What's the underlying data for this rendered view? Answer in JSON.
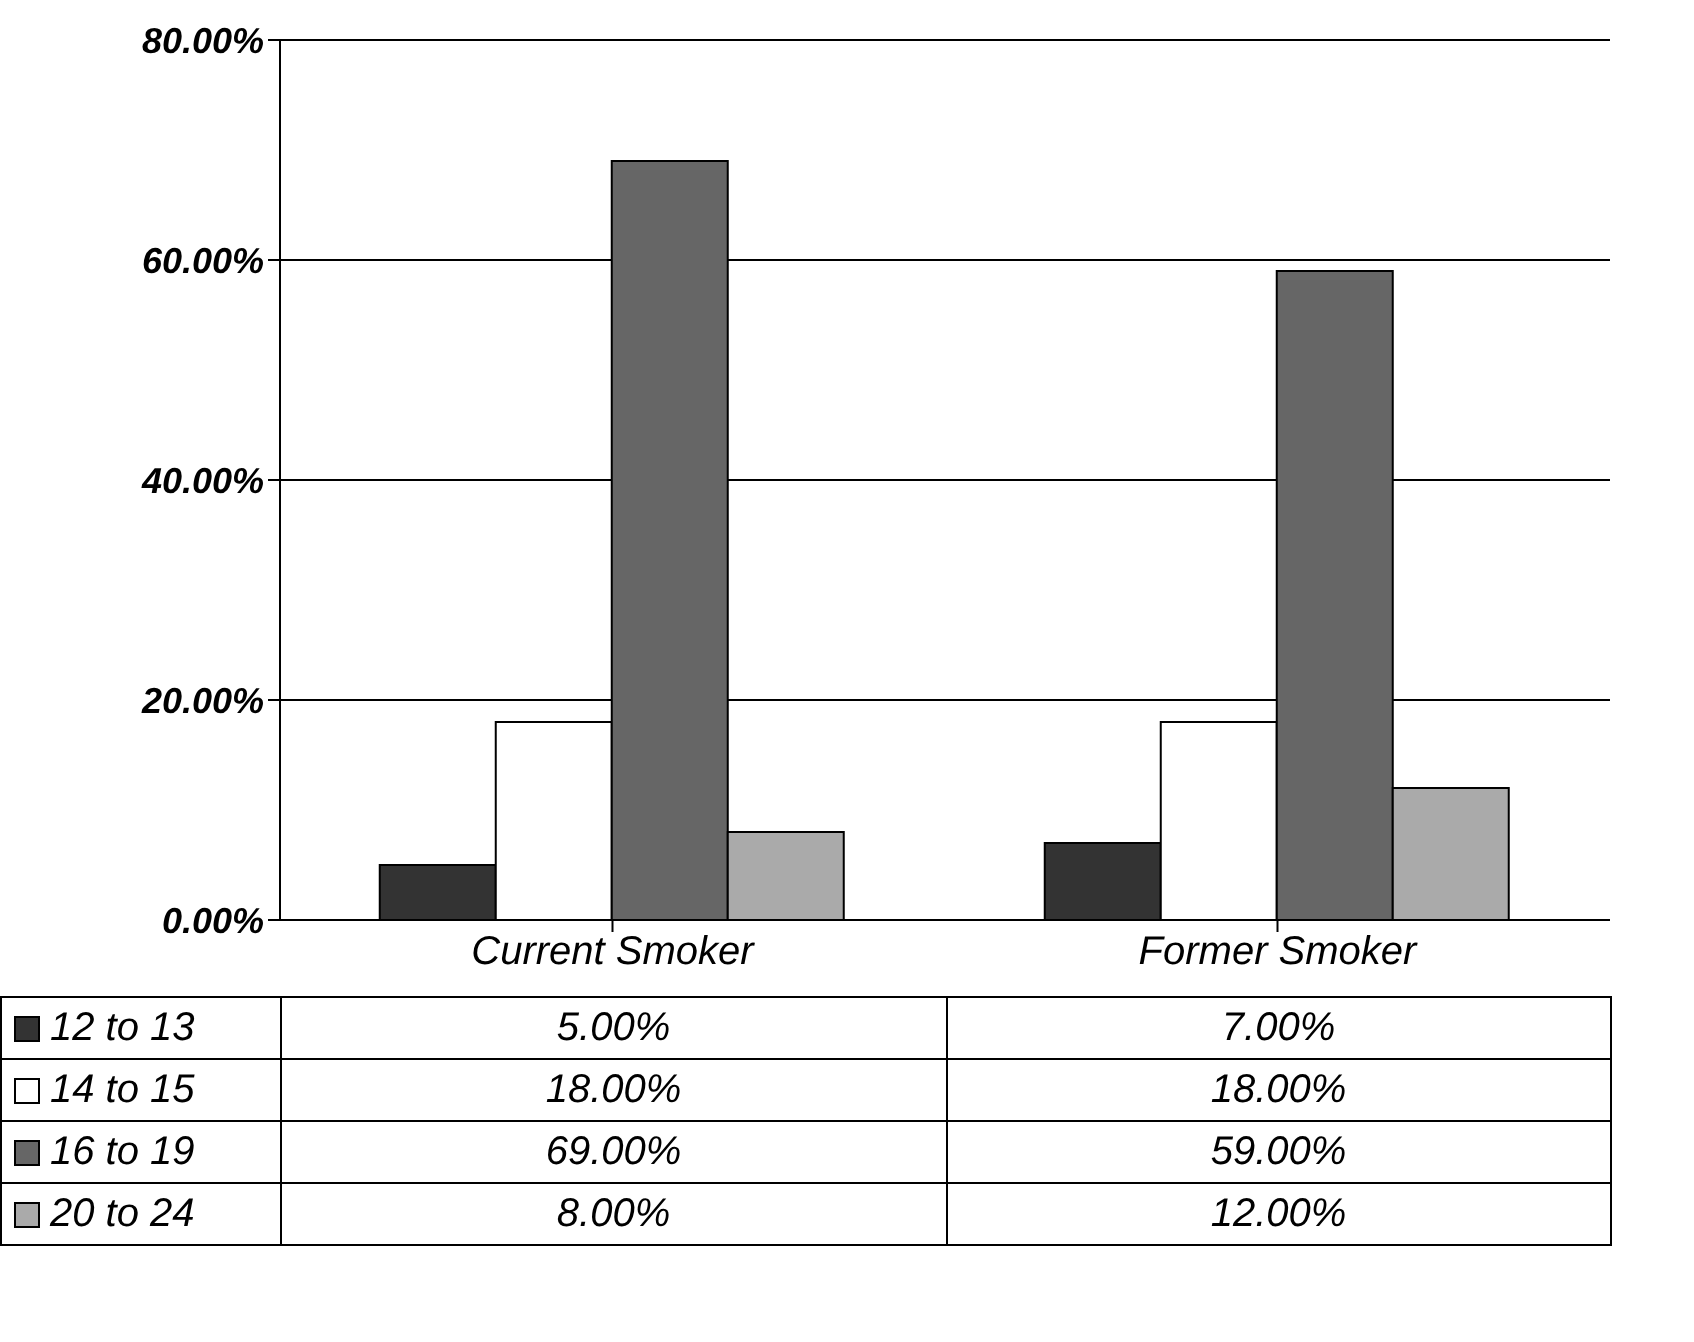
{
  "chart_data": {
    "type": "bar",
    "categories": [
      "Current Smoker",
      "Former Smoker"
    ],
    "series": [
      {
        "name": "12 to 13",
        "color": "#333333",
        "values": [
          5,
          7
        ],
        "value_labels": [
          "5.00%",
          "7.00%"
        ]
      },
      {
        "name": "14 to 15",
        "color": "#ffffff",
        "values": [
          18,
          18
        ],
        "value_labels": [
          "18.00%",
          "18.00%"
        ]
      },
      {
        "name": "16 to 19",
        "color": "#666666",
        "values": [
          69,
          59
        ],
        "value_labels": [
          "69.00%",
          "59.00%"
        ]
      },
      {
        "name": "20 to 24",
        "color": "#aaaaaa",
        "values": [
          8,
          12
        ],
        "value_labels": [
          "8.00%",
          "12.00%"
        ]
      }
    ],
    "ylim": [
      0,
      80
    ],
    "yticks": [
      {
        "value": 0,
        "label": "0.00%"
      },
      {
        "value": 20,
        "label": "20.00%"
      },
      {
        "value": 40,
        "label": "40.00%"
      },
      {
        "value": 60,
        "label": "60.00%"
      },
      {
        "value": 80,
        "label": "80.00%"
      }
    ],
    "grid": "y",
    "legend": "bottom"
  }
}
